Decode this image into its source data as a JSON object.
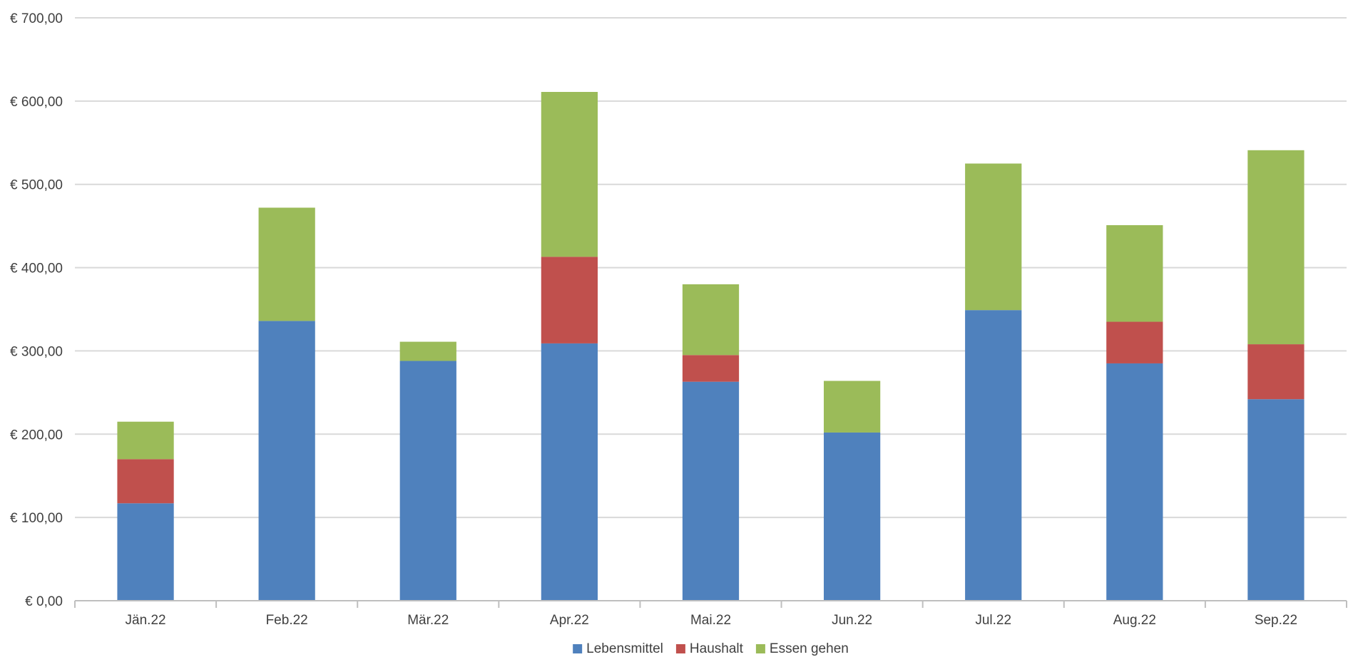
{
  "chart_data": {
    "type": "bar",
    "stacked": true,
    "categories": [
      "Jän.22",
      "Feb.22",
      "Mär.22",
      "Apr.22",
      "Mai.22",
      "Jun.22",
      "Jul.22",
      "Aug.22",
      "Sep.22"
    ],
    "series": [
      {
        "name": "Lebensmittel",
        "color": "#4f81bd",
        "values": [
          117,
          336,
          288,
          309,
          263,
          202,
          349,
          285,
          242
        ]
      },
      {
        "name": "Haushalt",
        "color": "#c0504d",
        "values": [
          53,
          0,
          0,
          104,
          32,
          0,
          0,
          50,
          66
        ]
      },
      {
        "name": "Essen gehen",
        "color": "#9bbb59",
        "values": [
          45,
          136,
          23,
          198,
          85,
          62,
          176,
          116,
          233
        ]
      }
    ],
    "y_ticks": [
      "€ 0,00",
      "€ 100,00",
      "€ 200,00",
      "€ 300,00",
      "€ 400,00",
      "€ 500,00",
      "€ 600,00",
      "€ 700,00"
    ],
    "ylim": [
      0,
      700
    ],
    "grid": true,
    "legend_position": "bottom"
  }
}
